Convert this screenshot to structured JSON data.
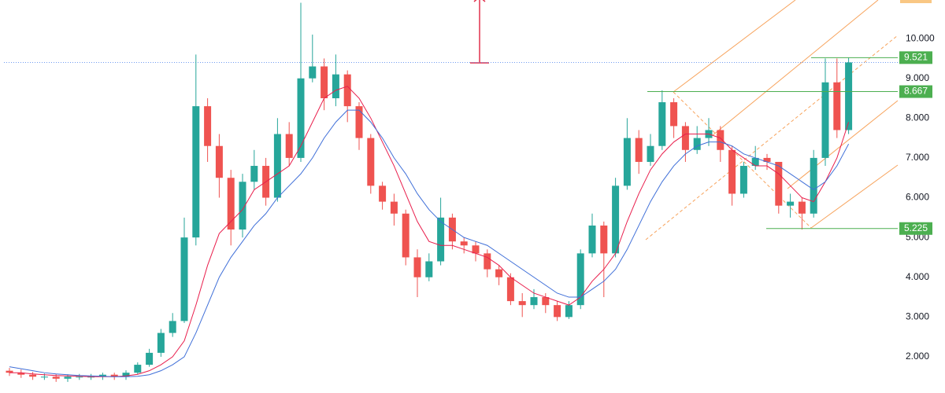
{
  "chart_data": {
    "type": "candlestick",
    "ylim": [
      1.09,
      10.97
    ],
    "yticks": [
      {
        "value": 2,
        "label": "2.000"
      },
      {
        "value": 3,
        "label": "3.000"
      },
      {
        "value": 4,
        "label": "4.000"
      },
      {
        "value": 5,
        "label": "5.000"
      },
      {
        "value": 6,
        "label": "6.000"
      },
      {
        "value": 7,
        "label": "7.000"
      },
      {
        "value": 8,
        "label": "8.000"
      },
      {
        "value": 9,
        "label": "9.000"
      },
      {
        "value": 10,
        "label": "10.000"
      }
    ],
    "up_color": "#26a69a",
    "down_color": "#ef5350",
    "open": [
      1.65,
      1.6,
      1.55,
      1.5,
      1.5,
      1.45,
      1.5,
      1.5,
      1.5,
      1.55,
      1.5,
      1.6,
      1.8,
      2.1,
      2.6,
      2.9,
      5.0,
      8.3,
      7.3,
      6.5,
      5.2,
      6.4,
      6.8,
      6.0,
      7.6,
      7.0,
      9.0,
      9.3,
      8.5,
      9.1,
      8.3,
      7.5,
      6.3,
      5.9,
      5.6,
      4.5,
      4.0,
      4.4,
      5.5,
      4.9,
      4.8,
      4.6,
      4.2,
      4.0,
      3.4,
      3.3,
      3.5,
      3.3,
      3.0,
      3.3,
      4.6,
      5.3,
      4.6,
      6.3,
      7.5,
      6.9,
      7.3,
      8.4,
      7.8,
      7.2,
      7.5,
      7.7,
      7.2,
      6.1,
      6.8,
      7.0,
      6.9,
      5.8,
      5.9,
      5.6,
      7.0,
      8.9,
      7.7
    ],
    "high": [
      1.72,
      1.68,
      1.62,
      1.58,
      1.57,
      1.56,
      1.57,
      1.57,
      1.6,
      1.6,
      1.66,
      1.86,
      2.2,
      2.7,
      3.1,
      5.5,
      9.6,
      8.5,
      7.6,
      6.7,
      6.6,
      7.2,
      7.0,
      8.0,
      7.9,
      10.9,
      10.1,
      9.5,
      9.6,
      9.2,
      8.4,
      7.6,
      6.4,
      6.1,
      5.7,
      4.7,
      4.6,
      6.0,
      5.6,
      5.0,
      4.9,
      4.7,
      4.3,
      4.1,
      3.6,
      3.7,
      3.6,
      3.4,
      3.4,
      4.7,
      5.6,
      5.4,
      6.5,
      8.0,
      7.7,
      7.6,
      8.7,
      8.5,
      7.9,
      7.8,
      8.0,
      7.8,
      7.3,
      6.9,
      7.3,
      7.1,
      6.9,
      6.1,
      6.0,
      7.2,
      9.5,
      9.5,
      9.52
    ],
    "low": [
      1.52,
      1.47,
      1.42,
      1.42,
      1.37,
      1.37,
      1.42,
      1.42,
      1.42,
      1.42,
      1.42,
      1.55,
      1.75,
      2.0,
      2.5,
      2.85,
      4.8,
      6.9,
      6.0,
      4.8,
      5.0,
      6.2,
      5.8,
      5.9,
      6.8,
      6.9,
      8.9,
      8.2,
      8.3,
      7.9,
      7.2,
      6.1,
      5.7,
      5.3,
      4.3,
      3.5,
      3.9,
      4.3,
      4.7,
      4.6,
      4.4,
      4.0,
      3.8,
      3.3,
      3.0,
      3.2,
      3.1,
      2.9,
      2.95,
      3.2,
      4.5,
      3.5,
      4.5,
      6.2,
      6.6,
      6.8,
      7.2,
      7.5,
      6.9,
      7.1,
      7.3,
      6.9,
      5.8,
      6.0,
      6.7,
      6.7,
      5.6,
      5.5,
      5.2,
      5.5,
      6.8,
      7.5,
      7.6
    ],
    "close": [
      1.6,
      1.55,
      1.5,
      1.5,
      1.45,
      1.5,
      1.5,
      1.5,
      1.55,
      1.5,
      1.6,
      1.8,
      2.1,
      2.6,
      2.9,
      5.0,
      8.3,
      7.3,
      6.5,
      5.2,
      6.4,
      6.8,
      6.0,
      7.6,
      7.0,
      9.0,
      9.3,
      8.5,
      9.1,
      8.3,
      7.5,
      6.3,
      5.9,
      5.6,
      4.5,
      4.0,
      4.4,
      5.5,
      4.9,
      4.8,
      4.6,
      4.2,
      4.0,
      3.4,
      3.3,
      3.5,
      3.3,
      3.0,
      3.3,
      4.6,
      5.3,
      4.6,
      6.3,
      7.5,
      6.9,
      7.3,
      8.4,
      7.8,
      7.2,
      7.5,
      7.7,
      7.2,
      6.1,
      6.8,
      7.0,
      6.9,
      5.8,
      5.9,
      5.6,
      7.0,
      8.9,
      7.7,
      9.4
    ],
    "lines": [
      {
        "color": "#e91e4c",
        "values": [
          1.6,
          1.6,
          1.57,
          1.55,
          1.53,
          1.52,
          1.51,
          1.5,
          1.5,
          1.5,
          1.52,
          1.56,
          1.65,
          1.8,
          2.0,
          2.4,
          3.3,
          4.3,
          5.1,
          5.4,
          5.7,
          6.2,
          6.4,
          6.6,
          6.8,
          7.3,
          7.9,
          8.5,
          8.7,
          8.8,
          8.5,
          8.0,
          7.4,
          6.8,
          6.1,
          5.4,
          4.9,
          4.8,
          4.8,
          4.7,
          4.6,
          4.5,
          4.3,
          4.0,
          3.8,
          3.6,
          3.5,
          3.4,
          3.3,
          3.5,
          3.9,
          4.2,
          4.6,
          5.4,
          6.1,
          6.7,
          7.1,
          7.4,
          7.6,
          7.6,
          7.6,
          7.5,
          7.2,
          7.0,
          6.8,
          6.8,
          6.6,
          6.3,
          6.0,
          5.9,
          6.4,
          7.0,
          7.9
        ]
      },
      {
        "color": "#3f6fd8",
        "values": [
          1.75,
          1.7,
          1.65,
          1.6,
          1.57,
          1.55,
          1.53,
          1.52,
          1.51,
          1.5,
          1.5,
          1.51,
          1.55,
          1.65,
          1.8,
          2.0,
          2.6,
          3.3,
          4.0,
          4.5,
          4.9,
          5.3,
          5.6,
          6.0,
          6.3,
          6.6,
          7.0,
          7.5,
          7.9,
          8.2,
          8.2,
          7.9,
          7.5,
          7.0,
          6.6,
          6.1,
          5.7,
          5.4,
          5.2,
          5.0,
          4.9,
          4.8,
          4.6,
          4.4,
          4.2,
          4.0,
          3.8,
          3.6,
          3.5,
          3.5,
          3.7,
          3.9,
          4.2,
          4.7,
          5.3,
          5.9,
          6.4,
          6.8,
          7.1,
          7.3,
          7.4,
          7.4,
          7.3,
          7.1,
          7.0,
          6.9,
          6.8,
          6.6,
          6.4,
          6.2,
          6.4,
          6.8,
          7.35
        ]
      }
    ],
    "price_lines": [
      {
        "value": 9.521,
        "color": "#4caf50"
      },
      {
        "value": 8.667,
        "color": "#4caf50"
      },
      {
        "value": 5.225,
        "color": "#4caf50"
      }
    ]
  }
}
